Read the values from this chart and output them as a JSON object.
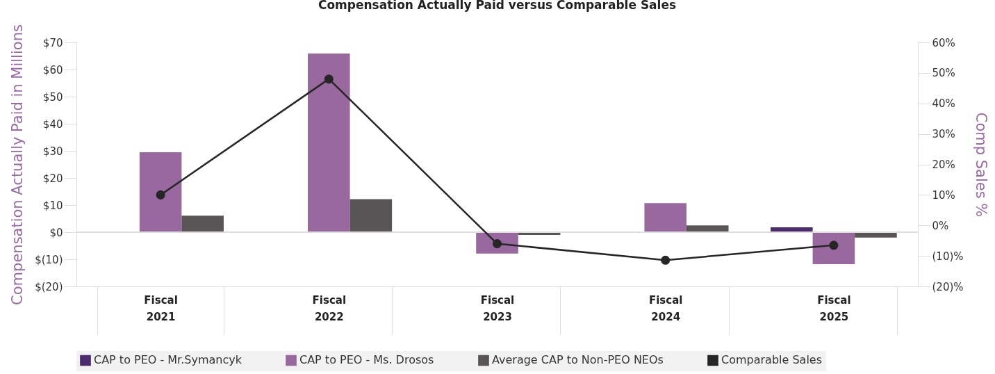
{
  "chart_data": {
    "type": "bar",
    "title": "Compensation Actually Paid versus Comparable Sales",
    "categories": [
      "Fiscal 2021",
      "Fiscal 2022",
      "Fiscal 2023",
      "Fiscal 2024",
      "Fiscal 2025"
    ],
    "series": [
      {
        "name": "CAP to PEO - Mr.Symancyk",
        "color": "#4b2a6e",
        "values": [
          null,
          null,
          null,
          null,
          1.8
        ]
      },
      {
        "name": "CAP to PEO - Ms. Drosos",
        "color": "#98689f",
        "values": [
          29.5,
          65.9,
          -7.9,
          10.7,
          -11.8
        ]
      },
      {
        "name": "Average CAP to Non-PEO NEOs",
        "color": "#595556",
        "values": [
          6.1,
          12.2,
          -1.0,
          2.5,
          -2.0
        ]
      },
      {
        "name": "Comparable Sales",
        "type": "line",
        "axis": "y2",
        "color": "#262626",
        "values": [
          10.0,
          48.0,
          -6.0,
          -11.4,
          -6.5
        ]
      }
    ],
    "ylabel": "Compensation Actually Paid in Millions",
    "y2label": "Comp Sales %",
    "ylim": [
      -20,
      70
    ],
    "yticks": [
      {
        "value": -20,
        "label": "$(20)"
      },
      {
        "value": -10,
        "label": "$(10)"
      },
      {
        "value": 0,
        "label": "$0"
      },
      {
        "value": 10,
        "label": "$10"
      },
      {
        "value": 20,
        "label": "$20"
      },
      {
        "value": 30,
        "label": "$30"
      },
      {
        "value": 40,
        "label": "$40"
      },
      {
        "value": 50,
        "label": "$50"
      },
      {
        "value": 60,
        "label": "$60"
      },
      {
        "value": 70,
        "label": "$70"
      }
    ],
    "y2lim": [
      -20,
      60
    ],
    "y2ticks": [
      {
        "value": -20,
        "label": "(20)%"
      },
      {
        "value": -10,
        "label": "(10)%"
      },
      {
        "value": 0,
        "label": "0%"
      },
      {
        "value": 10,
        "label": "10%"
      },
      {
        "value": 20,
        "label": "20%"
      },
      {
        "value": 30,
        "label": "30%"
      },
      {
        "value": 40,
        "label": "40%"
      },
      {
        "value": 50,
        "label": "50%"
      },
      {
        "value": 60,
        "label": "60%"
      }
    ],
    "ref_lines": [
      {
        "axis": "y",
        "value": 0
      }
    ],
    "marker": "circle",
    "line_style": "solid",
    "legend": "bottom",
    "grid": false
  }
}
